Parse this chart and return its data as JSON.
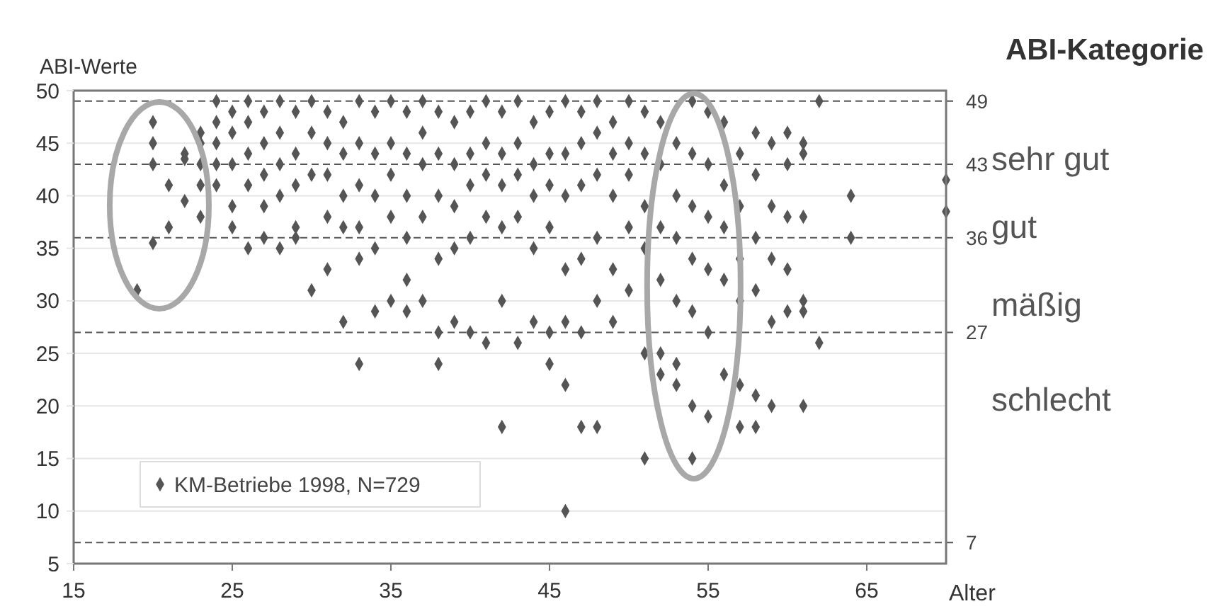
{
  "chart_data": {
    "type": "scatter",
    "title": "ABI-Kategorie",
    "xlabel": "Alter",
    "ylabel": "ABI-Werte",
    "xlim": [
      15,
      70
    ],
    "ylim": [
      5,
      50
    ],
    "xticks": [
      15,
      25,
      35,
      45,
      55,
      65
    ],
    "yticks": [
      5,
      10,
      15,
      20,
      25,
      30,
      35,
      40,
      45,
      50
    ],
    "grid": "y",
    "legend": "bottom left",
    "marker": "diamond",
    "ref_lines": [
      {
        "axis": "y",
        "value": 49,
        "label": "49",
        "line_style": "dashed",
        "color": "#555555"
      },
      {
        "axis": "y",
        "value": 43,
        "label": "43",
        "line_style": "dashed",
        "color": "#555555"
      },
      {
        "axis": "y",
        "value": 36,
        "label": "36",
        "line_style": "dashed",
        "color": "#555555"
      },
      {
        "axis": "y",
        "value": 27,
        "label": "27",
        "line_style": "dashed",
        "color": "#555555"
      },
      {
        "axis": "y",
        "value": 7,
        "label": "7",
        "line_style": "dashed",
        "color": "#555555"
      }
    ],
    "annotations": [
      "sehr gut",
      "gut",
      "mäßig",
      "schlecht"
    ],
    "series": [
      {
        "name": "KM-Betriebe 1998, N=729",
        "color": "#555555",
        "x": [
          19,
          20,
          20,
          20,
          20,
          21,
          21,
          22,
          22,
          22,
          23,
          23,
          23,
          23,
          23,
          24,
          24,
          24,
          24,
          24,
          25,
          25,
          25,
          25,
          25,
          26,
          26,
          26,
          26,
          26,
          27,
          27,
          27,
          27,
          27,
          28,
          28,
          28,
          28,
          28,
          29,
          29,
          29,
          29,
          29,
          30,
          30,
          30,
          30,
          31,
          31,
          31,
          31,
          31,
          32,
          32,
          32,
          32,
          32,
          33,
          33,
          33,
          33,
          33,
          33,
          34,
          34,
          34,
          34,
          34,
          35,
          35,
          35,
          35,
          35,
          36,
          36,
          36,
          36,
          36,
          36,
          37,
          37,
          37,
          37,
          37,
          38,
          38,
          38,
          38,
          38,
          38,
          39,
          39,
          39,
          39,
          39,
          40,
          40,
          40,
          40,
          40,
          41,
          41,
          41,
          41,
          41,
          42,
          42,
          42,
          42,
          42,
          42,
          43,
          43,
          43,
          43,
          43,
          44,
          44,
          44,
          44,
          44,
          45,
          45,
          45,
          45,
          45,
          45,
          46,
          46,
          46,
          46,
          46,
          46,
          46,
          47,
          47,
          47,
          47,
          47,
          47,
          48,
          48,
          48,
          48,
          48,
          48,
          49,
          49,
          49,
          49,
          49,
          50,
          50,
          50,
          50,
          50,
          51,
          51,
          51,
          51,
          51,
          51,
          52,
          52,
          52,
          52,
          52,
          52,
          53,
          53,
          53,
          53,
          53,
          53,
          54,
          54,
          54,
          54,
          54,
          54,
          54,
          55,
          55,
          55,
          55,
          55,
          55,
          56,
          56,
          56,
          56,
          56,
          57,
          57,
          57,
          57,
          57,
          57,
          58,
          58,
          58,
          58,
          58,
          58,
          59,
          59,
          59,
          59,
          59,
          60,
          60,
          60,
          60,
          60,
          61,
          61,
          61,
          61,
          61,
          61,
          62,
          62,
          64,
          64,
          70,
          70
        ],
        "values": [
          31,
          47,
          45,
          43,
          35.5,
          41,
          37,
          39.5,
          44,
          43.5,
          46,
          45,
          43,
          41,
          38,
          49,
          47,
          45,
          43,
          41,
          48,
          46,
          43,
          39,
          37,
          49,
          47,
          44,
          41,
          35,
          48,
          45,
          42,
          39,
          36,
          49,
          46,
          43,
          40,
          35,
          48,
          44,
          41,
          37,
          36,
          49,
          46,
          42,
          31,
          48,
          45,
          42,
          38,
          33,
          47,
          44,
          40,
          37,
          28,
          49,
          45,
          41,
          37,
          34,
          24,
          48,
          44,
          40,
          35,
          29,
          49,
          45,
          42,
          38,
          30,
          48,
          44,
          40,
          36,
          32,
          29,
          49,
          46,
          43,
          38,
          30,
          48,
          44,
          40,
          34,
          27,
          24,
          47,
          43,
          39,
          35,
          28,
          48,
          44,
          41,
          36,
          27,
          49,
          45,
          42,
          38,
          26,
          48,
          44,
          41,
          37,
          30,
          18,
          49,
          45,
          42,
          38,
          26,
          47,
          43,
          40,
          35,
          28,
          48,
          44,
          41,
          37,
          27,
          24,
          49,
          44,
          40,
          33,
          28,
          22,
          10,
          48,
          45,
          41,
          34,
          27,
          18,
          49,
          46,
          42,
          36,
          30,
          18,
          47,
          44,
          40,
          33,
          28,
          49,
          45,
          42,
          37,
          31,
          48,
          44,
          39,
          35,
          25,
          15,
          47,
          43,
          37,
          32,
          25,
          23,
          45,
          40,
          36,
          30,
          24,
          22,
          49,
          44,
          39,
          34,
          29,
          20,
          15,
          48,
          43,
          38,
          33,
          27,
          19,
          47,
          41,
          37,
          32,
          23,
          44,
          39,
          34,
          30,
          22,
          18,
          46,
          42,
          36,
          31,
          21,
          18,
          45,
          39,
          34,
          28,
          20,
          46,
          43,
          38,
          33,
          29,
          45,
          44,
          38,
          30,
          29,
          20,
          49,
          26,
          40,
          36,
          41.5,
          38.5
        ]
      }
    ]
  }
}
